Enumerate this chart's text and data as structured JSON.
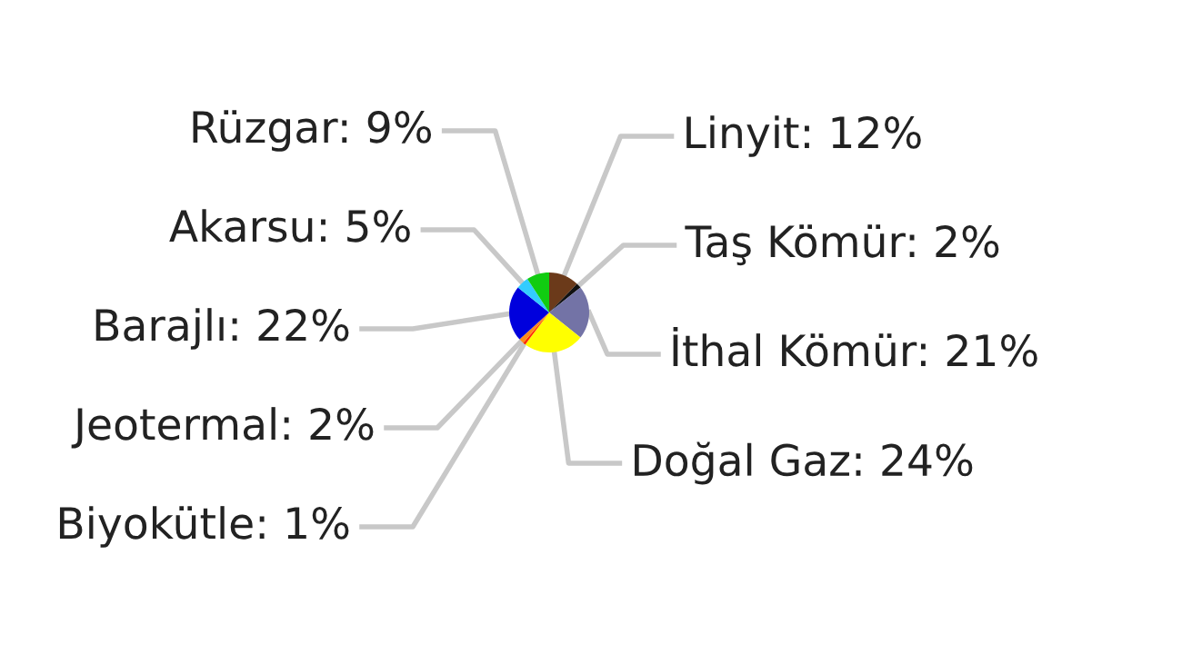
{
  "chart_data": {
    "type": "pie",
    "categories": [
      "Linyit",
      "Taş Kömür",
      "İthal Kömür",
      "Doğal Gaz",
      "Biyokütle",
      "Jeotermal",
      "Barajlı",
      "Akarsu",
      "Rüzgar"
    ],
    "values": [
      12,
      2,
      21,
      24,
      1,
      2,
      22,
      5,
      9
    ],
    "value_labels": [
      "12%",
      "2%",
      "21%",
      "24%",
      "1%",
      "2%",
      "22%",
      "5%",
      "9%"
    ],
    "colors": [
      "#6b3a1a",
      "#111111",
      "#7373a6",
      "#ffff00",
      "#ff2a00",
      "#ff8c1a",
      "#0000dd",
      "#33ccff",
      "#11cc11"
    ],
    "legend": false
  }
}
